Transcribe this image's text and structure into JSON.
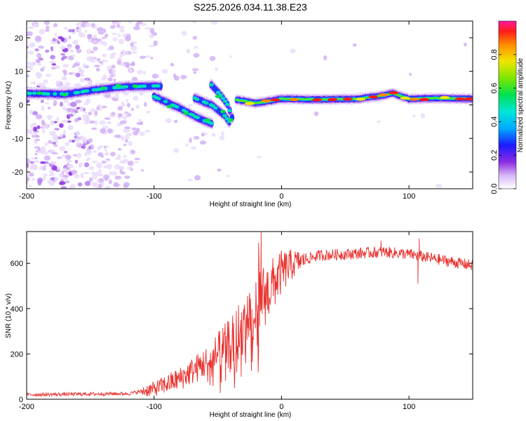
{
  "title": "S225.2026.034.11.38.E23",
  "chart_data": [
    {
      "type": "heatmap",
      "name": "spectrogram",
      "xlabel": "Height of straight line (km)",
      "ylabel": "Frequency (Hz)",
      "xlim": [
        -200,
        150
      ],
      "ylim": [
        -25,
        25
      ],
      "x_ticks": [
        -200,
        -100,
        0,
        100
      ],
      "y_ticks": [
        20,
        10,
        0,
        -10,
        -20
      ],
      "colorbar": {
        "label": "Normalized spectral amplitude",
        "range": [
          0,
          1
        ],
        "ticks": [
          "0.0",
          "0.2",
          "0.4",
          "0.6",
          "0.8"
        ],
        "tick_values": [
          0,
          0.2,
          0.4,
          0.6,
          0.8
        ]
      },
      "ridge_segments": [
        {
          "x": [
            -203,
            -170,
            -140,
            -120,
            -95
          ],
          "f": [
            3.5,
            3.2,
            4.8,
            5.5,
            5.6
          ]
        },
        {
          "x": [
            -100,
            -80,
            -65,
            -55
          ],
          "f": [
            2.5,
            -1.0,
            -4.0,
            -5.5
          ]
        },
        {
          "x": [
            -68,
            -55,
            -45,
            -40
          ],
          "f": [
            2.0,
            0.0,
            -3.0,
            -5.5
          ]
        },
        {
          "x": [
            -55,
            -48,
            -42,
            -37
          ],
          "f": [
            6.0,
            3.0,
            0.0,
            -6.0
          ]
        },
        {
          "x": [
            -35,
            -20,
            0,
            30,
            60,
            80,
            87,
            100,
            120,
            150
          ],
          "f": [
            1.5,
            0.5,
            1.8,
            1.6,
            1.8,
            2.8,
            3.5,
            1.8,
            2.0,
            1.8
          ]
        }
      ]
    },
    {
      "type": "line",
      "name": "snr",
      "xlabel": "Height of straight line (km)",
      "ylabel": "SNR (10 * v/v)",
      "xlim": [
        -200,
        150
      ],
      "ylim": [
        0,
        740
      ],
      "x_ticks": [
        -200,
        -100,
        0,
        100
      ],
      "y_ticks": [
        0,
        200,
        400,
        600
      ],
      "color": "#e8322f",
      "trend": {
        "x": [
          -200,
          -120,
          -100,
          -80,
          -60,
          -40,
          -30,
          -20,
          -10,
          0,
          10,
          20,
          30,
          50,
          80,
          100,
          110,
          130,
          150
        ],
        "y": [
          20,
          25,
          45,
          90,
          160,
          250,
          330,
          420,
          480,
          560,
          600,
          620,
          635,
          640,
          650,
          640,
          630,
          610,
          590
        ]
      },
      "spikes": [
        {
          "x": -16,
          "y": 740
        },
        {
          "x": -18,
          "y": 690
        },
        {
          "x": 108,
          "y": 710
        },
        {
          "x": 107,
          "y": 510
        },
        {
          "x": 78,
          "y": 700
        }
      ]
    }
  ]
}
